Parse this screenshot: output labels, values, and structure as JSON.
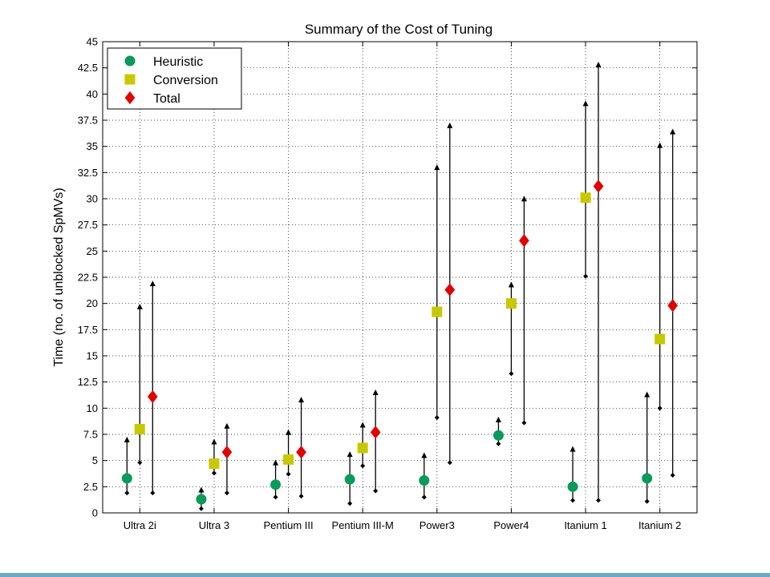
{
  "chart_data": {
    "type": "scatter",
    "title": "Summary of the Cost of Tuning",
    "xlabel": "",
    "ylabel": "Time (no. of unblocked SpMVs)",
    "ylim": [
      0,
      45
    ],
    "yticks": [
      0,
      2.5,
      5,
      7.5,
      10,
      12.5,
      15,
      17.5,
      20,
      22.5,
      25,
      27.5,
      30,
      32.5,
      35,
      37.5,
      40,
      42.5,
      45
    ],
    "ytick_labels": [
      "0",
      "2.5",
      "5",
      "7.5",
      "10",
      "12.5",
      "15",
      "17.5",
      "20",
      "22.5",
      "25",
      "27.5",
      "30",
      "32.5",
      "35",
      "37.5",
      "40",
      "42.5",
      "45"
    ],
    "grid": true,
    "legend_position": "top-left",
    "categories": [
      "Ultra 2i",
      "Ultra 3",
      "Pentium III",
      "Pentium III-M",
      "Power3",
      "Power4",
      "Itanium 1",
      "Itanium 2"
    ],
    "series": [
      {
        "name": "Heuristic",
        "marker": "circle",
        "color": "#0a9a5a",
        "values": [
          3.3,
          1.3,
          2.7,
          3.2,
          3.1,
          7.4,
          2.5,
          3.3
        ],
        "range_low": [
          1.9,
          0.4,
          1.5,
          0.9,
          1.5,
          6.6,
          1.2,
          1.1
        ],
        "range_high": [
          6.9,
          2.1,
          4.7,
          5.5,
          5.4,
          8.8,
          6.0,
          11.2
        ]
      },
      {
        "name": "Conversion",
        "marker": "square",
        "color": "#c8c800",
        "values": [
          8.0,
          4.7,
          5.1,
          6.2,
          19.2,
          20.0,
          30.1,
          16.6
        ],
        "range_low": [
          4.8,
          3.8,
          3.7,
          4.5,
          9.1,
          13.3,
          22.6,
          10.0
        ],
        "range_high": [
          19.6,
          6.7,
          7.6,
          8.3,
          32.9,
          21.7,
          39.0,
          35.0
        ]
      },
      {
        "name": "Total",
        "marker": "diamond",
        "color": "#e00000",
        "values": [
          11.1,
          5.8,
          5.8,
          7.7,
          21.3,
          26.0,
          31.2,
          19.8
        ],
        "range_low": [
          1.9,
          1.9,
          1.6,
          2.1,
          4.8,
          8.6,
          1.2,
          3.6
        ],
        "range_high": [
          21.8,
          8.2,
          10.7,
          11.4,
          36.9,
          29.9,
          42.7,
          36.3
        ]
      }
    ]
  }
}
